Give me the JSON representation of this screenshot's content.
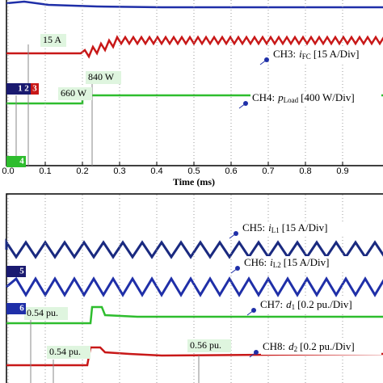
{
  "top_panel": {
    "x_axis": {
      "label": "Time (ms)",
      "ticks": [
        "0.0",
        "0.1",
        "0.2",
        "0.3",
        "0.4",
        "0.5",
        "0.6",
        "0.7",
        "0.8",
        "0.9"
      ]
    },
    "channels": [
      {
        "channel": "CH3:",
        "symbol": "i",
        "subscript": "FC",
        "scale": "[15 A/Div]"
      },
      {
        "channel": "CH4:",
        "symbol": "p",
        "subscript": "Load",
        "scale": "[400 W/Div]"
      }
    ],
    "annotations": [
      "15 A",
      "840 W",
      "660 W"
    ],
    "markers": [
      "1",
      "2",
      "3",
      "4"
    ]
  },
  "bottom_panel": {
    "channels": [
      {
        "channel": "CH5:",
        "symbol": "i",
        "subscript": "L1",
        "scale": "[15 A/Div]"
      },
      {
        "channel": "CH6:",
        "symbol": "i",
        "subscript": "L2",
        "scale": "[15 A/Div]"
      },
      {
        "channel": "CH7:",
        "symbol": "d",
        "subscript": "1",
        "scale": "[0.2 pu./Div]"
      },
      {
        "channel": "CH8:",
        "symbol": "d",
        "subscript": "2",
        "scale": "[0.2 pu./Div]"
      }
    ],
    "annotations": [
      "0.54 pu.",
      "0.54 pu.",
      "0.56 pu."
    ],
    "markers": [
      "5",
      "6"
    ]
  }
}
